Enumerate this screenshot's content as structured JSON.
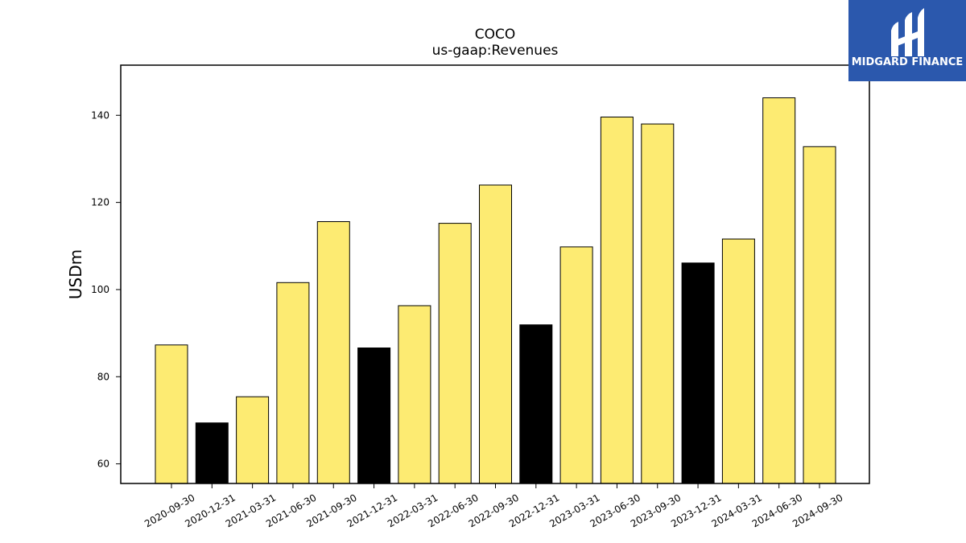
{
  "brand": {
    "name": "MIDGARD FINANCE",
    "color": "#2b58ad"
  },
  "chart_data": {
    "type": "bar",
    "title": "COCO",
    "subtitle": "us-gaap:Revenues",
    "ylabel": "USDm",
    "xlabel": "",
    "ylim": [
      55.5,
      151.5
    ],
    "yticks": [
      60,
      80,
      100,
      120,
      140
    ],
    "grid": false,
    "categories": [
      "2020-09-30",
      "2020-12-31",
      "2021-03-31",
      "2021-06-30",
      "2021-09-30",
      "2021-12-31",
      "2022-03-31",
      "2022-06-30",
      "2022-09-30",
      "2022-12-31",
      "2023-03-31",
      "2023-06-30",
      "2023-09-30",
      "2023-12-31",
      "2024-03-31",
      "2024-06-30",
      "2024-09-30"
    ],
    "values": [
      87.3,
      69.4,
      75.4,
      101.6,
      115.6,
      86.6,
      96.3,
      115.2,
      124.0,
      91.9,
      109.8,
      139.6,
      138.0,
      106.1,
      111.6,
      144.0,
      132.8
    ],
    "bar_colors": [
      "#fdeb72",
      "#000000",
      "#fdeb72",
      "#fdeb72",
      "#fdeb72",
      "#000000",
      "#fdeb72",
      "#fdeb72",
      "#fdeb72",
      "#000000",
      "#fdeb72",
      "#fdeb72",
      "#fdeb72",
      "#000000",
      "#fdeb72",
      "#fdeb72",
      "#fdeb72"
    ]
  }
}
